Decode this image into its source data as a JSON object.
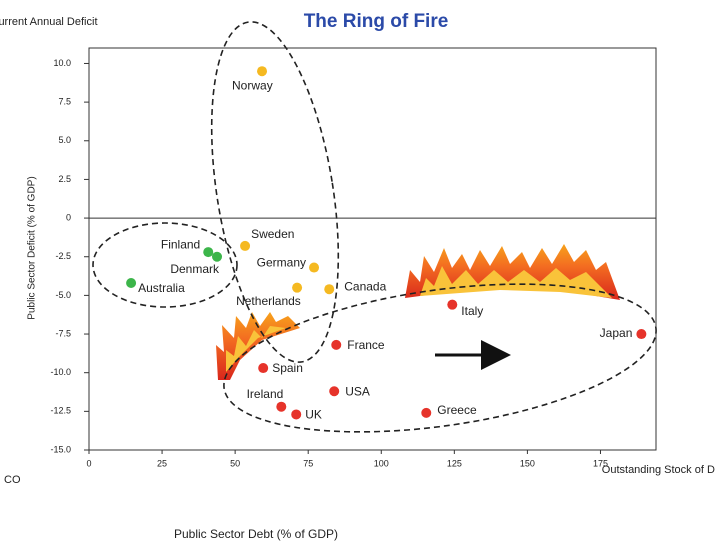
{
  "chart_data": {
    "type": "scatter",
    "title": "The Ring of Fire",
    "y_top_label": "Current Annual Deficit",
    "ylabel": "Public Sector Deficit (% of GDP)",
    "x_right_label": "Outstanding Stock of Debt",
    "xlabel": "Public Sector Debt (% of GDP)",
    "corner_text": "CO",
    "xlim": [
      0,
      194
    ],
    "ylim": [
      -15,
      11
    ],
    "xticks": [
      0,
      25,
      50,
      75,
      100,
      125,
      150,
      175
    ],
    "yticks": [
      {
        "value": 10,
        "label": "10.0"
      },
      7.5,
      {
        "value": 5,
        "label": "5.0"
      },
      2.5,
      0,
      -2.5,
      {
        "value": -5,
        "label": "-5.0"
      },
      -7.5,
      {
        "value": -10,
        "label": "-10.0"
      },
      -12.5,
      {
        "value": -15,
        "label": "-15.0"
      }
    ],
    "hline": 0,
    "series": [
      {
        "color": "#3cb54a",
        "labels": [
          "Finland",
          "Denmark",
          "Australia"
        ],
        "x": [
          40.8,
          43.8,
          14.4
        ],
        "values": [
          -2.2,
          -2.5,
          -4.2
        ]
      },
      {
        "color": "#f5b921",
        "labels": [
          "Norway",
          "Sweden",
          "Germany",
          "Netherlands",
          "Canada"
        ],
        "x": [
          59.2,
          53.4,
          77,
          71.2,
          82.2
        ],
        "values": [
          9.5,
          -1.8,
          -3.2,
          -4.5,
          -4.6
        ]
      },
      {
        "color": "#e6332a",
        "labels": [
          "Italy",
          "Japan",
          "France",
          "Spain",
          "USA",
          "Ireland",
          "UK",
          "Greece"
        ],
        "x": [
          124.3,
          189,
          84.6,
          59.6,
          83.9,
          65.8,
          70.9,
          115.4
        ],
        "values": [
          -5.6,
          -7.5,
          -8.2,
          -9.7,
          -11.2,
          -12.2,
          -12.7,
          -12.6
        ]
      }
    ]
  }
}
